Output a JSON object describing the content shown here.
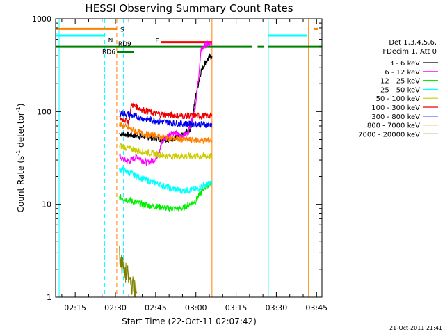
{
  "chart_data": {
    "type": "line",
    "title": "HESSI Observing Summary Count Rates",
    "xlabel": "Start Time (22-Oct-11 02:07:42)",
    "ylabel": "Count Rate (s⁻¹ detector⁻¹)",
    "ylabel_parts": {
      "base": "Count Rate (s",
      "exp1": "-1",
      "mid": " detector",
      "exp2": "-1",
      "end": ")"
    },
    "y_scale": "log",
    "ylim": [
      1,
      1000
    ],
    "xlim": [
      "02:07:42",
      "03:47:00"
    ],
    "x_ticks": [
      "02:15",
      "02:30",
      "02:45",
      "03:00",
      "03:15",
      "03:30",
      "03:45"
    ],
    "y_ticks": [
      "1",
      "10",
      "100",
      "1000"
    ],
    "legend": {
      "title_lines": [
        "Det 1,3,4,5,6,",
        "FDecim 1, Att 0"
      ],
      "placement": "right",
      "entries": [
        {
          "label": "3 - 6 keV",
          "color": "#000000"
        },
        {
          "label": "6 - 12 keV",
          "color": "#ff00ff"
        },
        {
          "label": "12 - 25 keV",
          "color": "#00ee00"
        },
        {
          "label": "25 - 50 keV",
          "color": "#00ffff"
        },
        {
          "label": "50 - 100 keV",
          "color": "#cccc00"
        },
        {
          "label": "100 - 300 keV",
          "color": "#ee0000"
        },
        {
          "label": "300 - 800 keV",
          "color": "#0000ee"
        },
        {
          "label": "800 - 7000 keV",
          "color": "#ff8000"
        },
        {
          "label": "7000 - 20000 keV",
          "color": "#808000"
        }
      ]
    },
    "series": [
      {
        "name": "3 - 6 keV",
        "color": "#000000",
        "x": [
          "02:31:30",
          "02:35:00",
          "02:40:00",
          "02:45:00",
          "02:50:00",
          "02:55:00",
          "02:58:00",
          "03:00:00",
          "03:02:00",
          "03:04:00",
          "03:06:00"
        ],
        "y": [
          58,
          56,
          54,
          52,
          50,
          55,
          65,
          150,
          280,
          360,
          400
        ]
      },
      {
        "name": "6 - 12 keV",
        "color": "#ff00ff",
        "x": [
          "02:31:30",
          "02:33:00",
          "02:35:00",
          "02:38:00",
          "02:40:00",
          "02:42:00",
          "02:45:00",
          "02:48:00",
          "02:51:00",
          "02:54:00",
          "02:57:00",
          "03:00:00",
          "03:02:00",
          "03:04:00",
          "03:06:00"
        ],
        "y": [
          33,
          30,
          29,
          33,
          30,
          28,
          31,
          50,
          60,
          55,
          58,
          120,
          460,
          540,
          520
        ]
      },
      {
        "name": "12 - 25 keV",
        "color": "#00ee00",
        "x": [
          "02:31:30",
          "02:35:00",
          "02:40:00",
          "02:45:00",
          "02:50:00",
          "02:55:00",
          "03:00:00",
          "03:03:00",
          "03:06:00"
        ],
        "y": [
          12,
          11,
          10,
          9.5,
          9.0,
          9.0,
          11,
          15,
          17
        ]
      },
      {
        "name": "25 - 50 keV",
        "color": "#00ffff",
        "x": [
          "02:31:30",
          "02:35:00",
          "02:40:00",
          "02:45:00",
          "02:50:00",
          "02:55:00",
          "03:00:00",
          "03:03:00",
          "03:06:00"
        ],
        "y": [
          24,
          22,
          19,
          17,
          15,
          14,
          14.5,
          16,
          17
        ]
      },
      {
        "name": "50 - 100 keV",
        "color": "#cccc00",
        "x": [
          "02:31:30",
          "02:35:00",
          "02:40:00",
          "02:45:00",
          "02:50:00",
          "02:55:00",
          "03:00:00",
          "03:06:00"
        ],
        "y": [
          43,
          40,
          37,
          35,
          33,
          33,
          33,
          33
        ]
      },
      {
        "name": "100 - 300 keV",
        "color": "#ee0000",
        "x": [
          "02:31:30",
          "02:35:00",
          "02:36:00",
          "02:40:00",
          "02:45:00",
          "02:50:00",
          "02:55:00",
          "03:00:00",
          "03:06:00"
        ],
        "y": [
          85,
          78,
          120,
          105,
          95,
          92,
          90,
          90,
          90
        ]
      },
      {
        "name": "300 - 800 keV",
        "color": "#0000ee",
        "x": [
          "02:31:30",
          "02:35:00",
          "02:40:00",
          "02:45:00",
          "02:50:00",
          "02:55:00",
          "03:00:00",
          "03:06:00"
        ],
        "y": [
          98,
          93,
          84,
          80,
          76,
          74,
          73,
          72
        ]
      },
      {
        "name": "800 - 7000 keV",
        "color": "#ff8000",
        "x": [
          "02:31:30",
          "02:35:00",
          "02:40:00",
          "02:45:00",
          "02:50:00",
          "02:55:00",
          "03:00:00",
          "03:06:00"
        ],
        "y": [
          72,
          66,
          58,
          55,
          52,
          50,
          49,
          49
        ]
      },
      {
        "name": "7000 - 20000 keV",
        "color": "#808000",
        "x": [
          "02:31:30",
          "02:32:30",
          "02:33:30",
          "02:35:00",
          "02:36:30",
          "02:38:00"
        ],
        "y": [
          2.8,
          2.2,
          1.9,
          1.6,
          1.3,
          1.1
        ]
      }
    ],
    "flags": [
      {
        "label": "S",
        "color": "#ff8000",
        "y": 780,
        "segments": [
          [
            "02:07:42",
            "02:30:30"
          ],
          [
            "03:44:00",
            "03:45:30"
          ]
        ]
      },
      {
        "label": "N",
        "color": "#00ffff",
        "y": 660,
        "segments": [
          [
            "02:07:42",
            "02:26:00"
          ],
          [
            "03:27:00",
            "03:41:30"
          ]
        ]
      },
      {
        "label": "F",
        "color": "#ff0000",
        "y": 560,
        "segments": [
          [
            "02:47:00",
            "03:06:00"
          ]
        ]
      },
      {
        "label": "RD9",
        "color": "#008000",
        "y": 500,
        "segments": [
          [
            "02:07:42",
            "03:21:00"
          ],
          [
            "03:23:00",
            "03:25:30"
          ],
          [
            "03:27:00",
            "03:47:00"
          ]
        ]
      },
      {
        "label": "RD6",
        "color": "#008000",
        "y": 440,
        "segments": [
          [
            "02:30:30",
            "02:37:00"
          ]
        ]
      }
    ],
    "vertical_markers": [
      {
        "x": "02:09:00",
        "color": "#00ffff",
        "style": "solid"
      },
      {
        "x": "02:26:00",
        "color": "#00ffff",
        "style": "dashed"
      },
      {
        "x": "02:30:30",
        "color": "#ff8000",
        "style": "dashed"
      },
      {
        "x": "02:33:00",
        "color": "#00ffff",
        "style": "dashed"
      },
      {
        "x": "03:06:00",
        "color": "#ff8000",
        "style": "solid"
      },
      {
        "x": "03:27:00",
        "color": "#00ffff",
        "style": "solid"
      },
      {
        "x": "03:42:00",
        "color": "#ff8000",
        "style": "solid"
      },
      {
        "x": "03:44:00",
        "color": "#00ffff",
        "style": "dashed"
      }
    ],
    "footer": "21-Oct-2011 21:41"
  }
}
